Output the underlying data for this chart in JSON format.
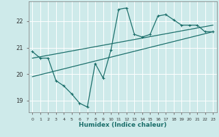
{
  "xlabel": "Humidex (Indice chaleur)",
  "background_color": "#ceeaea",
  "grid_color": "#ffffff",
  "line_color": "#1a6e6a",
  "xlim": [
    -0.5,
    23.5
  ],
  "ylim": [
    18.55,
    22.75
  ],
  "yticks": [
    19,
    20,
    21,
    22
  ],
  "xticks": [
    0,
    1,
    2,
    3,
    4,
    5,
    6,
    7,
    8,
    9,
    10,
    11,
    12,
    13,
    14,
    15,
    16,
    17,
    18,
    19,
    20,
    21,
    22,
    23
  ],
  "series_main": {
    "x": [
      0,
      1,
      2,
      3,
      4,
      5,
      6,
      7,
      8,
      9,
      10,
      11,
      12,
      13,
      14,
      15,
      16,
      17,
      18,
      19,
      20,
      21,
      22,
      23
    ],
    "y": [
      20.85,
      20.6,
      20.6,
      19.75,
      19.55,
      19.25,
      18.9,
      18.75,
      20.4,
      19.85,
      20.9,
      22.45,
      22.5,
      21.5,
      21.4,
      21.5,
      22.2,
      22.25,
      22.05,
      21.85,
      21.85,
      21.85,
      21.6,
      21.6
    ]
  },
  "series_line1": {
    "x": [
      0,
      23
    ],
    "y": [
      19.9,
      21.6
    ]
  },
  "series_line2": {
    "x": [
      0,
      23
    ],
    "y": [
      20.6,
      21.85
    ]
  }
}
